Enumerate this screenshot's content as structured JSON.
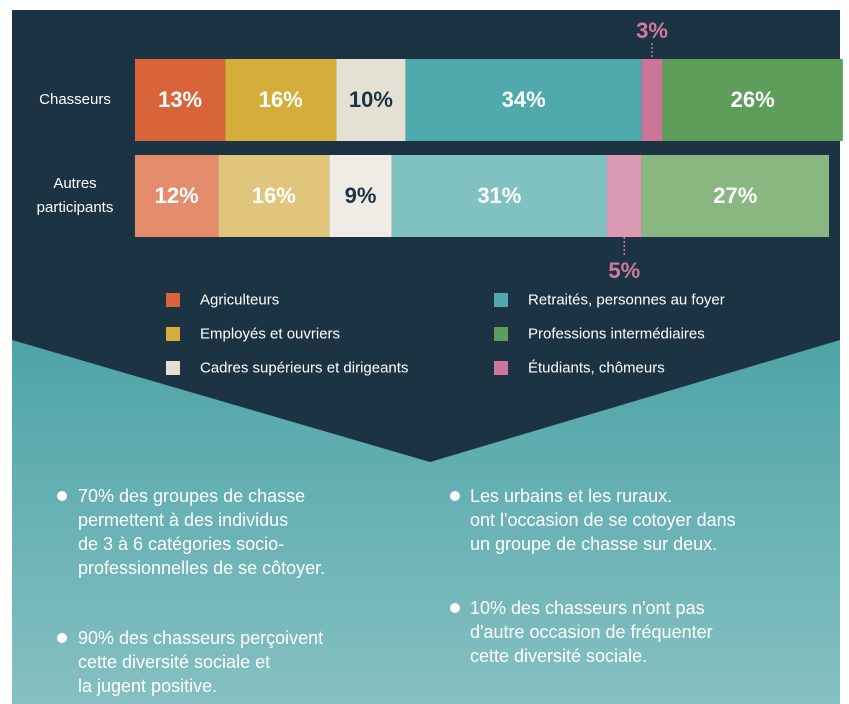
{
  "chart_data": {
    "type": "stacked-bar",
    "categories": [
      "Chasseurs",
      "Autres participants"
    ],
    "series": [
      {
        "name": "Agriculteurs",
        "colors": [
          "#d9643a",
          "#e58c6c"
        ],
        "label_color": "#ffffff",
        "values": [
          13,
          12
        ],
        "value_labels": [
          "13%",
          "12%"
        ]
      },
      {
        "name": "Employés et ouvriers",
        "colors": [
          "#d4ad3a",
          "#e2c57c"
        ],
        "label_color": "#ffffff",
        "values": [
          16,
          16
        ],
        "value_labels": [
          "16%",
          "16%"
        ]
      },
      {
        "name": "Cadres supérieurs et dirigeants",
        "colors": [
          "#e4e0d4",
          "#eeece4"
        ],
        "label_color": "#1c3344",
        "values": [
          10,
          9
        ],
        "value_labels": [
          "10%",
          "9%"
        ]
      },
      {
        "name": "Retraités, personnes au foyer",
        "colors": [
          "#4fa9ad",
          "#80c2c2"
        ],
        "label_color": "#ffffff",
        "values": [
          34,
          31
        ],
        "value_labels": [
          "34%",
          "31%"
        ]
      },
      {
        "name": "Étudiants, chômeurs",
        "colors": [
          "#cc7598",
          "#da9ab3"
        ],
        "label_color": "#d17aa0",
        "values": [
          3,
          5
        ],
        "value_labels": [
          "3%",
          "5%"
        ]
      },
      {
        "name": "Professions intermédiaires",
        "colors": [
          "#5e9e5a",
          "#8ab67f"
        ],
        "label_color": "#ffffff",
        "values": [
          26,
          27
        ],
        "value_labels": [
          "26%",
          "27%"
        ]
      }
    ]
  },
  "bullets": {
    "left": [
      {
        "lines": [
          "70% des groupes de chasse",
          "permettent à des individus",
          "de 3 à 6 catégories socio-",
          "professionnelles de se côtoyer."
        ]
      },
      {
        "lines": [
          "90% des chasseurs perçoivent",
          "cette diversité sociale et",
          "la jugent positive."
        ]
      }
    ],
    "right": [
      {
        "lines": [
          "Les urbains et les ruraux.",
          "ont l'occasion de se cotoyer dans",
          "un groupe de chasse sur deux."
        ]
      },
      {
        "lines": [
          "10% des chasseurs n'ont pas",
          "d'autre occasion de fréquenter",
          "cette diversité sociale."
        ]
      }
    ]
  }
}
